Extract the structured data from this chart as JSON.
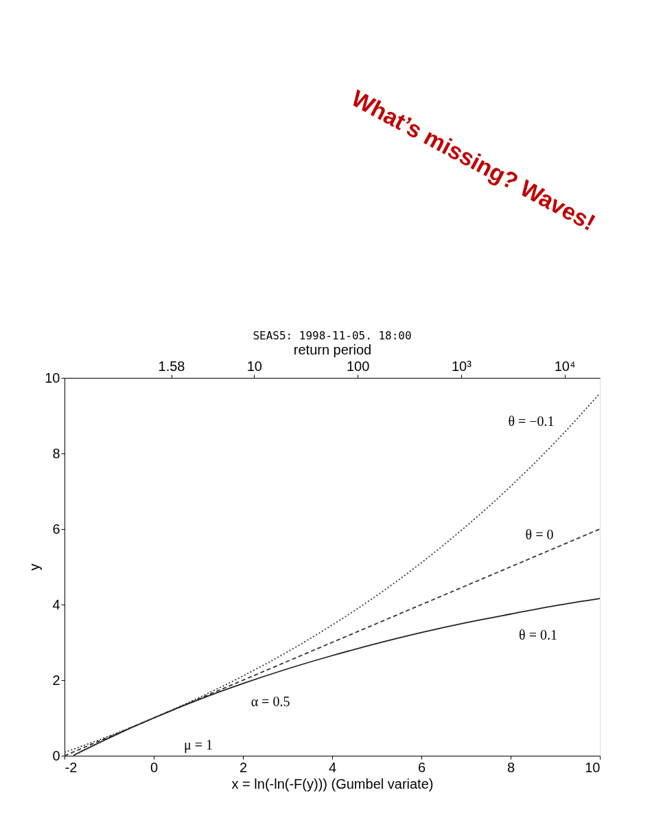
{
  "chart_data": {
    "type": "line",
    "title": "SEAS5: 1998-11-05. 18:00",
    "x2label": "return period",
    "xlabel": "x = ln(-ln(-F(y)))  (Gumbel variate)",
    "ylabel": "y",
    "xlim": [
      -2,
      10
    ],
    "xticks": [
      -2,
      0,
      2,
      4,
      6,
      8,
      10
    ],
    "ylim": [
      0,
      10
    ],
    "yticks": [
      0,
      2,
      4,
      6,
      8,
      10
    ],
    "x2lim": [
      0.147,
      21900
    ],
    "x2ticks": [
      1.58,
      10,
      100,
      {
        "value": 1000,
        "label": "10³"
      },
      {
        "value": 10000,
        "label": "10⁴"
      }
    ],
    "log": "x2",
    "grid": false,
    "marker": "none",
    "series": [
      {
        "color": "#333333",
        "line_style": "dotted",
        "x": [
          -2,
          -1,
          0,
          1,
          2,
          3,
          4,
          5,
          6,
          7,
          8,
          9,
          10
        ],
        "values": [
          0.09,
          0.52,
          1,
          1.53,
          2.11,
          2.75,
          3.46,
          4.24,
          5.11,
          6.07,
          7.13,
          8.3,
          9.59
        ]
      },
      {
        "color": "#333333",
        "line_style": "dashed",
        "x": [
          -2,
          -1,
          0,
          1,
          2,
          3,
          4,
          5,
          6,
          7,
          8,
          9,
          10
        ],
        "values": [
          0,
          0.5,
          1,
          1.5,
          2,
          2.5,
          3,
          3.5,
          4,
          4.5,
          5,
          5.5,
          6
        ]
      },
      {
        "color": "#222222",
        "line_style": "solid",
        "x": [
          -1.8,
          -1,
          0,
          1,
          2,
          3,
          4,
          5,
          6,
          7,
          8,
          9,
          10
        ],
        "values": [
          0.01,
          0.47,
          1,
          1.48,
          1.91,
          2.3,
          2.65,
          2.97,
          3.26,
          3.52,
          3.75,
          3.97,
          4.16
        ]
      }
    ],
    "annotations": [
      "θ = −0.1",
      "θ = 0",
      "θ = 0.1",
      "α = 0.5",
      "μ = 1",
      "What’s missing? Waves!"
    ]
  }
}
